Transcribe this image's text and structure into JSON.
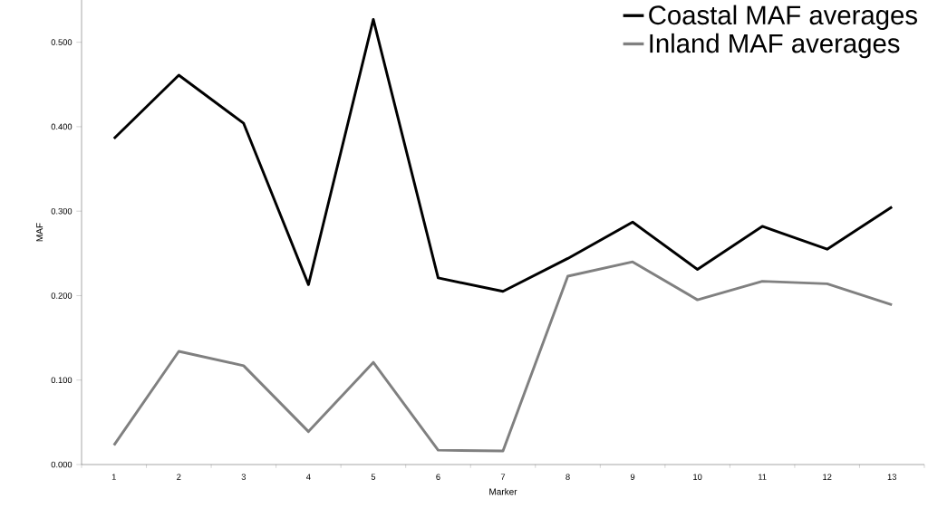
{
  "chart_data": {
    "type": "line",
    "xlabel": "Marker",
    "ylabel": "MAF",
    "categories": [
      "1",
      "2",
      "3",
      "4",
      "5",
      "6",
      "7",
      "8",
      "9",
      "10",
      "11",
      "12",
      "13"
    ],
    "series": [
      {
        "name": "Coastal MAF averages",
        "color": "#000000",
        "values": [
          0.386,
          0.461,
          0.404,
          0.213,
          0.527,
          0.221,
          0.205,
          0.244,
          0.287,
          0.231,
          0.282,
          0.255,
          0.305
        ]
      },
      {
        "name": "Inland MAF averages",
        "color": "#808080",
        "values": [
          0.023,
          0.134,
          0.117,
          0.039,
          0.121,
          0.017,
          0.016,
          0.223,
          0.24,
          0.195,
          0.217,
          0.214,
          0.189
        ]
      }
    ],
    "ylim": [
      0,
      0.55
    ],
    "yticks": [
      {
        "value": 0,
        "label": "0.000"
      },
      {
        "value": 0.1,
        "label": "0.100"
      },
      {
        "value": 0.2,
        "label": "0.200"
      },
      {
        "value": 0.3,
        "label": "0.300"
      },
      {
        "value": 0.4,
        "label": "0.400"
      },
      {
        "value": 0.5,
        "label": "0.500"
      }
    ],
    "legend": "top right",
    "grid": false,
    "marker": "none",
    "line_style": "solid"
  }
}
